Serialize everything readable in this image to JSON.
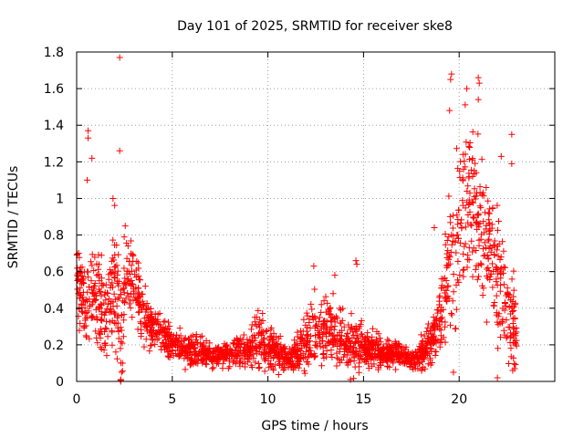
{
  "chart_data": {
    "type": "scatter",
    "title": "Day 101 of 2025, SRMTID for receiver ske8",
    "xlabel": "GPS time / hours",
    "ylabel": "SRMTID / TECUs",
    "xlim": [
      0,
      25
    ],
    "ylim": [
      0,
      1.8
    ],
    "grid": true,
    "marker": "+",
    "series_color": "#ff0000",
    "x_ticks": [
      0,
      5,
      10,
      15,
      20
    ],
    "x_tick_labels": [
      "0",
      "5",
      "10",
      "15",
      "20"
    ],
    "y_ticks": [
      0,
      0.2,
      0.4,
      0.6,
      0.8,
      1.0,
      1.2,
      1.4,
      1.6,
      1.8
    ],
    "y_tick_labels": [
      "0",
      "0.2",
      "0.4",
      "0.6",
      "0.8",
      "1",
      "1.2",
      "1.4",
      "1.6",
      "1.8"
    ],
    "profile": {
      "x": [
        0.0,
        0.5,
        1.0,
        1.5,
        2.0,
        2.3,
        2.6,
        3.0,
        3.5,
        4.0,
        4.5,
        5.0,
        6.0,
        7.0,
        8.0,
        9.0,
        9.5,
        10.0,
        10.5,
        11.0,
        11.5,
        12.0,
        12.5,
        13.0,
        13.5,
        14.0,
        14.5,
        15.0,
        16.0,
        17.0,
        17.5,
        18.0,
        18.5,
        19.0,
        19.5,
        20.0,
        20.5,
        21.0,
        21.5,
        22.0,
        22.5,
        23.0
      ],
      "median": [
        0.55,
        0.45,
        0.45,
        0.35,
        0.55,
        0.25,
        0.6,
        0.55,
        0.35,
        0.3,
        0.25,
        0.2,
        0.17,
        0.15,
        0.15,
        0.17,
        0.25,
        0.18,
        0.15,
        0.13,
        0.15,
        0.22,
        0.25,
        0.28,
        0.25,
        0.22,
        0.2,
        0.18,
        0.15,
        0.15,
        0.12,
        0.15,
        0.2,
        0.35,
        0.6,
        0.85,
        1.0,
        0.9,
        0.75,
        0.55,
        0.4,
        0.25
      ],
      "spread": [
        0.15,
        0.15,
        0.2,
        0.15,
        0.25,
        0.25,
        0.15,
        0.15,
        0.1,
        0.07,
        0.07,
        0.06,
        0.06,
        0.05,
        0.05,
        0.06,
        0.1,
        0.07,
        0.06,
        0.05,
        0.06,
        0.12,
        0.12,
        0.12,
        0.1,
        0.1,
        0.12,
        0.07,
        0.05,
        0.05,
        0.04,
        0.06,
        0.08,
        0.15,
        0.25,
        0.3,
        0.3,
        0.3,
        0.25,
        0.25,
        0.2,
        0.12
      ]
    },
    "highlights": [
      {
        "x": 2.25,
        "y": 1.77
      },
      {
        "x": 2.25,
        "y": 1.26
      },
      {
        "x": 0.6,
        "y": 1.37
      },
      {
        "x": 0.6,
        "y": 1.33
      },
      {
        "x": 0.8,
        "y": 1.22
      },
      {
        "x": 0.55,
        "y": 1.1
      },
      {
        "x": 1.9,
        "y": 1.0
      },
      {
        "x": 19.6,
        "y": 1.68
      },
      {
        "x": 19.55,
        "y": 1.65
      },
      {
        "x": 21.0,
        "y": 1.66
      },
      {
        "x": 21.05,
        "y": 1.63
      },
      {
        "x": 20.4,
        "y": 1.6
      },
      {
        "x": 21.0,
        "y": 1.54
      },
      {
        "x": 19.5,
        "y": 1.48
      },
      {
        "x": 22.75,
        "y": 1.35
      },
      {
        "x": 22.2,
        "y": 1.23
      },
      {
        "x": 22.75,
        "y": 1.19
      },
      {
        "x": 12.4,
        "y": 0.63
      },
      {
        "x": 13.5,
        "y": 0.58
      },
      {
        "x": 14.6,
        "y": 0.66
      },
      {
        "x": 14.65,
        "y": 0.64
      },
      {
        "x": 2.35,
        "y": 0.05
      },
      {
        "x": 2.3,
        "y": 0.0
      },
      {
        "x": 2.4,
        "y": 0.1
      },
      {
        "x": 19.7,
        "y": 0.05
      },
      {
        "x": 22.0,
        "y": 0.02
      },
      {
        "x": 22.9,
        "y": 0.07
      },
      {
        "x": 18.7,
        "y": 0.84
      }
    ]
  }
}
